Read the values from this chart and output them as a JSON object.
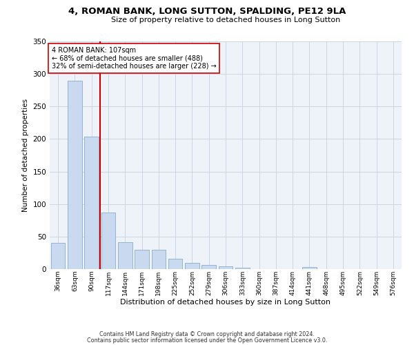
{
  "title": "4, ROMAN BANK, LONG SUTTON, SPALDING, PE12 9LA",
  "subtitle": "Size of property relative to detached houses in Long Sutton",
  "xlabel": "Distribution of detached houses by size in Long Sutton",
  "ylabel": "Number of detached properties",
  "categories": [
    "36sqm",
    "63sqm",
    "90sqm",
    "117sqm",
    "144sqm",
    "171sqm",
    "198sqm",
    "225sqm",
    "252sqm",
    "279sqm",
    "306sqm",
    "333sqm",
    "360sqm",
    "387sqm",
    "414sqm",
    "441sqm",
    "468sqm",
    "495sqm",
    "522sqm",
    "549sqm",
    "576sqm"
  ],
  "values": [
    40,
    290,
    204,
    87,
    41,
    30,
    30,
    16,
    10,
    6,
    4,
    2,
    0,
    0,
    0,
    3,
    0,
    0,
    0,
    0,
    0
  ],
  "bar_color": "#c9d9ef",
  "bar_edge_color": "#7a9fc2",
  "vline_x": 2.5,
  "vline_color": "#cc0000",
  "annotation_text": "4 ROMAN BANK: 107sqm\n← 68% of detached houses are smaller (488)\n32% of semi-detached houses are larger (228) →",
  "annotation_box_color": "#ffffff",
  "annotation_box_edge": "#cc0000",
  "ylim": [
    0,
    350
  ],
  "yticks": [
    0,
    50,
    100,
    150,
    200,
    250,
    300,
    350
  ],
  "background_color": "#eef2f9",
  "footer1": "Contains HM Land Registry data © Crown copyright and database right 2024.",
  "footer2": "Contains public sector information licensed under the Open Government Licence v3.0."
}
